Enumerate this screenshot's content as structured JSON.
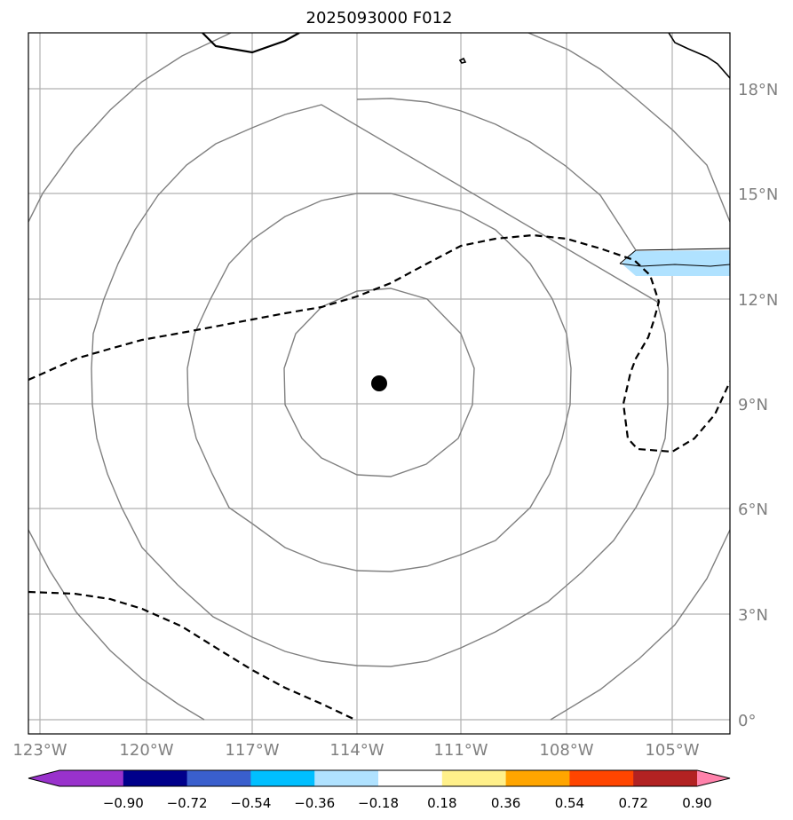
{
  "title": "2025093000 F012",
  "map": {
    "lat_labels": [
      "0°",
      "3°N",
      "6°N",
      "9°N",
      "12°N",
      "15°N",
      "18°N"
    ],
    "lon_labels": [
      "123°W",
      "120°W",
      "117°W",
      "114°W",
      "111°W",
      "108°W",
      "105°W"
    ],
    "center_marker": {
      "lon": -113.4,
      "lat": 9.5
    },
    "grid": true
  },
  "colorbar": {
    "ticks": [
      "−0.90",
      "−0.72",
      "−0.54",
      "−0.36",
      "−0.18",
      "0.18",
      "0.36",
      "0.54",
      "0.72",
      "0.90"
    ],
    "colors": [
      "#9932cc",
      "#00008b",
      "#3a5fcd",
      "#00bfff",
      "#b0e2ff",
      "#ffffff",
      "#fff08a",
      "#ffa500",
      "#ff4500",
      "#b22222",
      "#ff82ab"
    ]
  },
  "colors": {
    "contour": "#808080",
    "grid": "#b0b0b0",
    "shading": "#b0e2ff",
    "marker": "#000000"
  }
}
